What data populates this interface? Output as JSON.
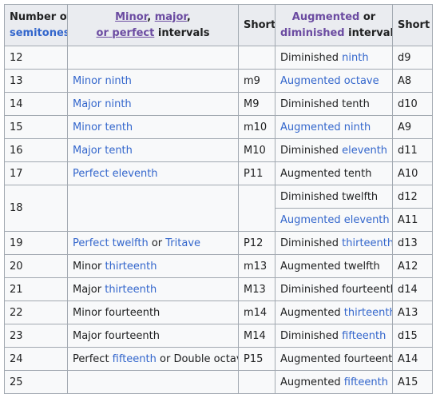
{
  "headers": {
    "semitones": {
      "line1": "Number of",
      "line2": "semitones"
    },
    "minor_major": {
      "minor": "Minor",
      "major": "major",
      "line2a": "or",
      "perfect": "perfect",
      "line2b": "intervals",
      "comma": ","
    },
    "short1": "Short",
    "aug_dim": {
      "augmented": "Augmented",
      "or": "or",
      "diminished": "diminished",
      "intervals": "intervals"
    },
    "short2": "Short"
  },
  "rows": [
    {
      "n": "12",
      "mm": [],
      "ms": "",
      "ad": [
        {
          "t": "Diminished "
        },
        {
          "t": "ninth",
          "link": true
        }
      ],
      "as": "d9"
    },
    {
      "n": "13",
      "mm": [
        {
          "t": "Minor ninth",
          "link": true
        }
      ],
      "ms": "m9",
      "ad": [
        {
          "t": "Augmented octave",
          "link": true
        }
      ],
      "as": "A8"
    },
    {
      "n": "14",
      "mm": [
        {
          "t": "Major ninth",
          "link": true
        }
      ],
      "ms": "M9",
      "ad": [
        {
          "t": "Diminished tenth"
        }
      ],
      "as": "d10"
    },
    {
      "n": "15",
      "mm": [
        {
          "t": "Minor tenth",
          "link": true
        }
      ],
      "ms": "m10",
      "ad": [
        {
          "t": "Augmented ninth",
          "link": true
        }
      ],
      "as": "A9"
    },
    {
      "n": "16",
      "mm": [
        {
          "t": "Major tenth",
          "link": true
        }
      ],
      "ms": "M10",
      "ad": [
        {
          "t": "Diminished "
        },
        {
          "t": "eleventh",
          "link": true
        }
      ],
      "as": "d11"
    },
    {
      "n": "17",
      "mm": [
        {
          "t": "Perfect eleventh",
          "link": true
        }
      ],
      "ms": "P11",
      "ad": [
        {
          "t": "Augmented tenth"
        }
      ],
      "as": "A10"
    },
    {
      "n": "18",
      "mm": [],
      "ms": "",
      "ad": [
        {
          "t": "Diminished twelfth"
        }
      ],
      "as": "d12",
      "span": true
    },
    {
      "sub": true,
      "ad": [
        {
          "t": "Augmented eleventh",
          "link": true
        }
      ],
      "as": "A11"
    },
    {
      "n": "19",
      "mm": [
        {
          "t": "Perfect twelfth",
          "link": true
        },
        {
          "t": " or "
        },
        {
          "t": "Tritave",
          "link": true
        }
      ],
      "ms": "P12",
      "ad": [
        {
          "t": "Diminished "
        },
        {
          "t": "thirteenth",
          "link": true
        }
      ],
      "as": "d13"
    },
    {
      "n": "20",
      "mm": [
        {
          "t": "Minor "
        },
        {
          "t": "thirteenth",
          "link": true
        }
      ],
      "ms": "m13",
      "ad": [
        {
          "t": "Augmented twelfth"
        }
      ],
      "as": "A12"
    },
    {
      "n": "21",
      "mm": [
        {
          "t": "Major "
        },
        {
          "t": "thirteenth",
          "link": true
        }
      ],
      "ms": "M13",
      "ad": [
        {
          "t": "Diminished fourteenth"
        }
      ],
      "as": "d14"
    },
    {
      "n": "22",
      "mm": [
        {
          "t": "Minor fourteenth"
        }
      ],
      "ms": "m14",
      "ad": [
        {
          "t": "Augmented "
        },
        {
          "t": "thirteenth",
          "link": true
        }
      ],
      "as": "A13"
    },
    {
      "n": "23",
      "mm": [
        {
          "t": "Major fourteenth"
        }
      ],
      "ms": "M14",
      "ad": [
        {
          "t": "Diminished "
        },
        {
          "t": "fifteenth",
          "link": true
        }
      ],
      "as": "d15"
    },
    {
      "n": "24",
      "mm": [
        {
          "t": "Perfect "
        },
        {
          "t": "fifteenth",
          "link": true
        },
        {
          "t": " or Double octave"
        }
      ],
      "ms": "P15",
      "ad": [
        {
          "t": "Augmented fourteenth"
        }
      ],
      "as": "A14"
    },
    {
      "n": "25",
      "mm": [],
      "ms": "",
      "ad": [
        {
          "t": "Augmented "
        },
        {
          "t": "fifteenth",
          "link": true
        }
      ],
      "as": "A15"
    }
  ],
  "colors": {
    "link": "#3366cc",
    "visited_link": "#6b4ba1",
    "header_bg": "#eaecf0",
    "cell_bg": "#f8f9fa",
    "border": "#a2a9b1"
  }
}
